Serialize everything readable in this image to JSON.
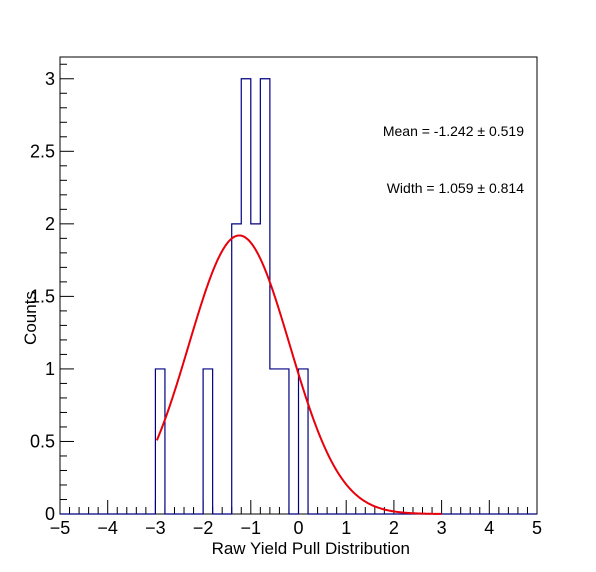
{
  "chart_data": {
    "type": "histogram",
    "xlabel": "Raw Yield Pull Distribution",
    "ylabel": "Counts",
    "xlim": [
      -5,
      5
    ],
    "ylim": [
      0,
      3.15
    ],
    "x_ticks": [
      "−5",
      "−4",
      "−3",
      "−2",
      "−1",
      "0",
      "1",
      "2",
      "3",
      "4",
      "5"
    ],
    "y_ticks": [
      "0",
      "0.5",
      "1",
      "1.5",
      "2",
      "2.5",
      "3"
    ],
    "grid": false,
    "bin_width": 0.2,
    "bins": [
      {
        "x0": -3.0,
        "x1": -2.8,
        "count": 1
      },
      {
        "x0": -2.0,
        "x1": -1.8,
        "count": 1
      },
      {
        "x0": -1.4,
        "x1": -1.2,
        "count": 2
      },
      {
        "x0": -1.2,
        "x1": -1.0,
        "count": 3
      },
      {
        "x0": -1.0,
        "x1": -0.8,
        "count": 2
      },
      {
        "x0": -0.8,
        "x1": -0.6,
        "count": 3
      },
      {
        "x0": -0.6,
        "x1": -0.4,
        "count": 1
      },
      {
        "x0": -0.4,
        "x1": -0.2,
        "count": 1
      },
      {
        "x0": 0.0,
        "x1": 0.2,
        "count": 1
      }
    ],
    "fit": {
      "function": "gaus",
      "mean": -1.242,
      "sigma": 1.059,
      "amplitude": 1.92,
      "x_range": [
        -2.97,
        3.0
      ]
    },
    "annotations": [
      "Mean = -1.242 ± 0.519",
      "Width = 1.059 ± 0.814"
    ],
    "colors": {
      "histogram": "#000080",
      "fit": "#e8000b",
      "frame": "#000000"
    }
  }
}
